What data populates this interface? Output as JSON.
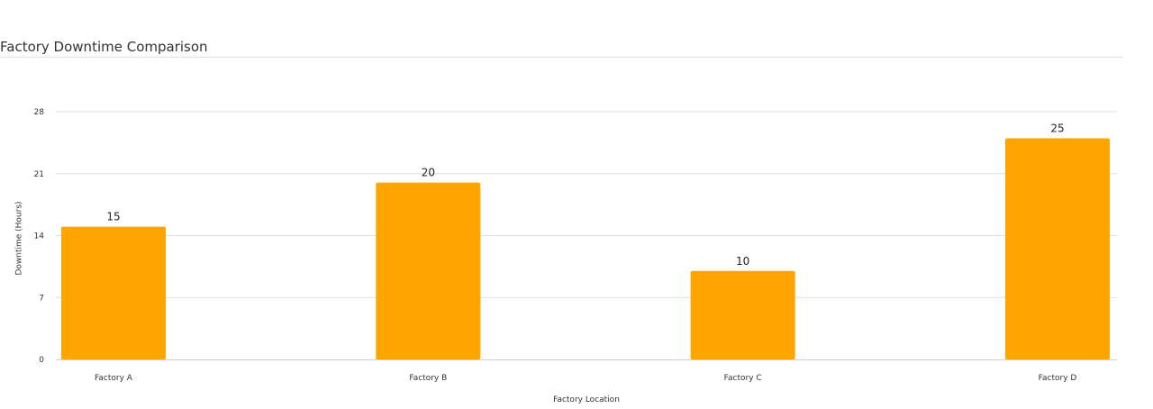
{
  "title": "Factory Downtime Comparison",
  "chart_data": {
    "type": "bar",
    "title": "Factory Downtime Comparison",
    "categories": [
      "Factory A",
      "Factory B",
      "Factory C",
      "Factory D"
    ],
    "values": [
      15,
      20,
      10,
      25
    ],
    "xlabel": "Factory Location",
    "ylabel": "Downtime (Hours)",
    "ylim": [
      0,
      28
    ],
    "yticks": [
      0,
      7,
      14,
      21,
      28
    ],
    "grid": true,
    "data_labels": true,
    "bar_color": "#FFA500",
    "legend": "none"
  }
}
